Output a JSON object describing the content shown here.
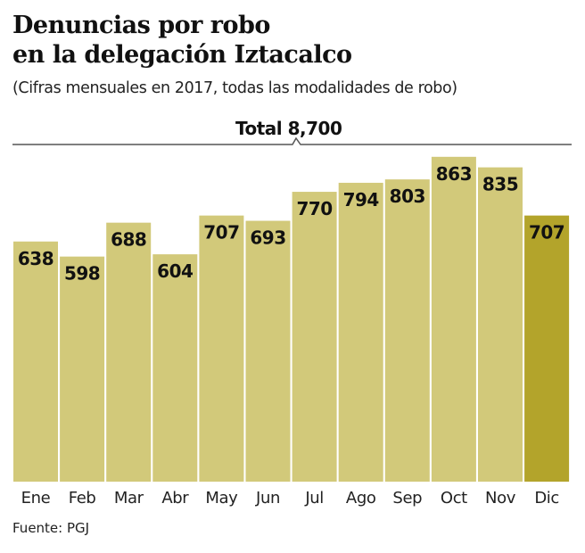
{
  "chart_data": {
    "type": "bar",
    "title": "Denuncias por robo en la delegación Iztacalco",
    "title_lines": [
      "Denuncias por robo",
      "en la delegación Iztacalco"
    ],
    "subtitle": "(Cifras mensuales en 2017, todas las modalidades de robo)",
    "total_label": "Total 8,700",
    "categories": [
      "Ene",
      "Feb",
      "Mar",
      "Abr",
      "May",
      "Jun",
      "Jul",
      "Ago",
      "Sep",
      "Oct",
      "Nov",
      "Dic"
    ],
    "values": [
      638,
      598,
      688,
      604,
      707,
      693,
      770,
      794,
      803,
      863,
      835,
      707
    ],
    "highlight_index": 11,
    "colors": {
      "bar": "#d2c97a",
      "highlight": "#b3a42b"
    },
    "xlabel": "",
    "ylabel": "",
    "grid": false,
    "source": "Fuente: PGJ"
  }
}
